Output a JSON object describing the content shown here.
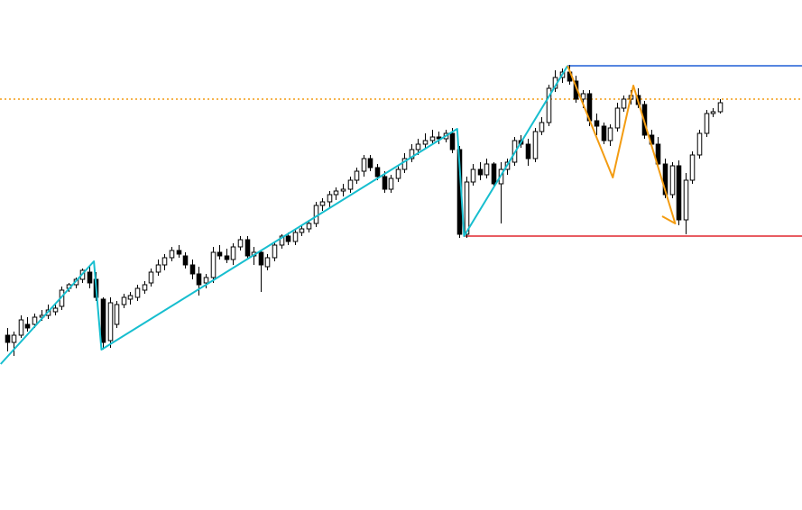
{
  "chart_data": {
    "type": "candlestick",
    "xlim": [
      -1,
      116
    ],
    "ylim": [
      34,
      600
    ],
    "up_color": "#ffffff",
    "down_color": "#000000",
    "outline_color": "#000000",
    "candles": [
      [
        228,
        236,
        210,
        220
      ],
      [
        220,
        232,
        205,
        228
      ],
      [
        228,
        250,
        225,
        245
      ],
      [
        240,
        248,
        232,
        236
      ],
      [
        240,
        252,
        236,
        248
      ],
      [
        248,
        256,
        244,
        250
      ],
      [
        250,
        262,
        246,
        256
      ],
      [
        254,
        262,
        250,
        258
      ],
      [
        260,
        282,
        256,
        278
      ],
      [
        280,
        286,
        276,
        284
      ],
      [
        284,
        292,
        280,
        290
      ],
      [
        290,
        302,
        286,
        300
      ],
      [
        298,
        304,
        280,
        286
      ],
      [
        290,
        298,
        266,
        270
      ],
      [
        268,
        270,
        212,
        220
      ],
      [
        222,
        270,
        214,
        264
      ],
      [
        240,
        266,
        236,
        262
      ],
      [
        262,
        274,
        258,
        270
      ],
      [
        268,
        276,
        262,
        272
      ],
      [
        270,
        284,
        266,
        280
      ],
      [
        278,
        288,
        274,
        284
      ],
      [
        286,
        302,
        282,
        298
      ],
      [
        298,
        312,
        294,
        306
      ],
      [
        306,
        318,
        300,
        314
      ],
      [
        314,
        326,
        310,
        322
      ],
      [
        322,
        328,
        314,
        318
      ],
      [
        316,
        320,
        302,
        306
      ],
      [
        306,
        312,
        290,
        296
      ],
      [
        296,
        304,
        272,
        284
      ],
      [
        286,
        296,
        280,
        292
      ],
      [
        292,
        326,
        286,
        320
      ],
      [
        320,
        328,
        312,
        316
      ],
      [
        316,
        324,
        308,
        312
      ],
      [
        312,
        330,
        306,
        326
      ],
      [
        326,
        338,
        322,
        334
      ],
      [
        334,
        338,
        312,
        316
      ],
      [
        316,
        326,
        306,
        320
      ],
      [
        320,
        322,
        276,
        306
      ],
      [
        304,
        318,
        300,
        314
      ],
      [
        314,
        332,
        310,
        328
      ],
      [
        328,
        340,
        324,
        338
      ],
      [
        338,
        342,
        328,
        332
      ],
      [
        332,
        346,
        328,
        342
      ],
      [
        342,
        350,
        338,
        346
      ],
      [
        346,
        356,
        342,
        352
      ],
      [
        352,
        376,
        348,
        372
      ],
      [
        372,
        380,
        366,
        376
      ],
      [
        376,
        388,
        370,
        384
      ],
      [
        384,
        392,
        378,
        388
      ],
      [
        388,
        396,
        382,
        390
      ],
      [
        390,
        404,
        386,
        400
      ],
      [
        400,
        414,
        396,
        410
      ],
      [
        410,
        428,
        404,
        424
      ],
      [
        424,
        428,
        410,
        414
      ],
      [
        414,
        418,
        400,
        404
      ],
      [
        404,
        410,
        386,
        390
      ],
      [
        390,
        406,
        386,
        402
      ],
      [
        402,
        416,
        398,
        412
      ],
      [
        412,
        430,
        408,
        424
      ],
      [
        424,
        440,
        420,
        434
      ],
      [
        434,
        446,
        428,
        440
      ],
      [
        440,
        452,
        436,
        444
      ],
      [
        444,
        456,
        440,
        448
      ],
      [
        448,
        454,
        440,
        446
      ],
      [
        446,
        456,
        442,
        452
      ],
      [
        452,
        458,
        430,
        434
      ],
      [
        434,
        438,
        336,
        340
      ],
      [
        340,
        404,
        336,
        398
      ],
      [
        398,
        418,
        394,
        412
      ],
      [
        412,
        420,
        400,
        406
      ],
      [
        406,
        424,
        402,
        418
      ],
      [
        418,
        420,
        392,
        396
      ],
      [
        396,
        420,
        352,
        412
      ],
      [
        412,
        424,
        406,
        420
      ],
      [
        420,
        448,
        416,
        444
      ],
      [
        444,
        450,
        436,
        440
      ],
      [
        440,
        446,
        416,
        424
      ],
      [
        424,
        458,
        420,
        454
      ],
      [
        454,
        470,
        450,
        464
      ],
      [
        464,
        506,
        460,
        502
      ],
      [
        502,
        522,
        498,
        514
      ],
      [
        514,
        524,
        508,
        520
      ],
      [
        520,
        528,
        506,
        510
      ],
      [
        510,
        516,
        486,
        490
      ],
      [
        490,
        500,
        480,
        496
      ],
      [
        496,
        500,
        460,
        466
      ],
      [
        466,
        474,
        450,
        460
      ],
      [
        460,
        464,
        440,
        444
      ],
      [
        444,
        462,
        438,
        458
      ],
      [
        458,
        486,
        454,
        480
      ],
      [
        480,
        494,
        476,
        490
      ],
      [
        490,
        500,
        484,
        494
      ],
      [
        494,
        502,
        480,
        484
      ],
      [
        484,
        488,
        446,
        450
      ],
      [
        450,
        456,
        436,
        440
      ],
      [
        440,
        448,
        414,
        418
      ],
      [
        418,
        424,
        380,
        384
      ],
      [
        384,
        420,
        380,
        416
      ],
      [
        416,
        422,
        350,
        356
      ],
      [
        356,
        408,
        340,
        400
      ],
      [
        400,
        432,
        396,
        428
      ],
      [
        428,
        456,
        424,
        452
      ],
      [
        452,
        478,
        448,
        474
      ],
      [
        474,
        480,
        470,
        476
      ],
      [
        476,
        490,
        474,
        486
      ]
    ],
    "lines": [
      {
        "color": "#17becf",
        "x": [
          -0.9,
          12.7,
          13.8,
          65.7,
          66.7,
          81.8
        ],
        "y": [
          196,
          310,
          212,
          457,
          338,
          527
        ]
      },
      {
        "color": "#f39c12",
        "x": [
          81.8,
          88.4,
          91.4,
          97.5,
          95.6
        ],
        "y": [
          527,
          403,
          505,
          352,
          360
        ]
      }
    ],
    "levels": [
      {
        "color": "#1f5fd6",
        "value": 527,
        "from": 81.8,
        "dashed": false
      },
      {
        "color": "#f39c12",
        "value": 490,
        "from": -1,
        "dashed": true
      },
      {
        "color": "#e0262e",
        "value": 338,
        "from": 66.7,
        "dashed": false
      }
    ]
  }
}
